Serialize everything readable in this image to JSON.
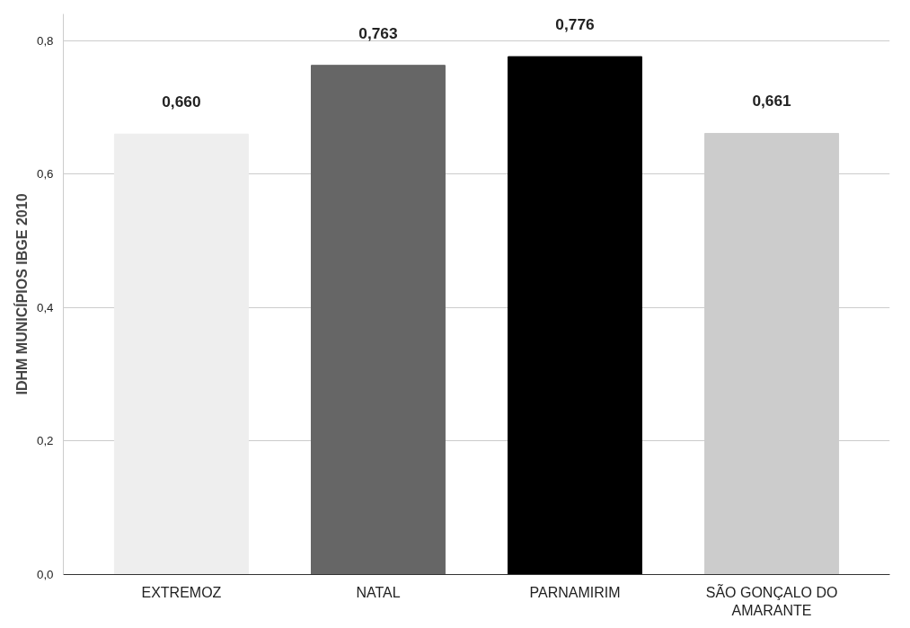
{
  "chart_data": {
    "type": "bar",
    "ylabel": "IDHM MUNICÍPIOS IBGE 2010",
    "categories": [
      "EXTREMOZ",
      "NATAL",
      "PARNAMIRIM",
      "SÃO GONÇALO DO AMARANTE"
    ],
    "values": [
      0.66,
      0.763,
      0.776,
      0.661
    ],
    "colors": [
      "#eeeeee",
      "#666666",
      "#000000",
      "#cccccc"
    ],
    "value_labels": [
      "0,660",
      "0,763",
      "0,776",
      "0,661"
    ],
    "ylim": [
      0,
      0.84
    ],
    "yticks": [
      {
        "value": 0,
        "label": "0,0"
      },
      {
        "value": 0.2,
        "label": "0,2"
      },
      {
        "value": 0.4,
        "label": "0,4"
      },
      {
        "value": 0.6,
        "label": "0,6"
      },
      {
        "value": 0.8,
        "label": "0,8"
      }
    ],
    "grid": "y"
  }
}
